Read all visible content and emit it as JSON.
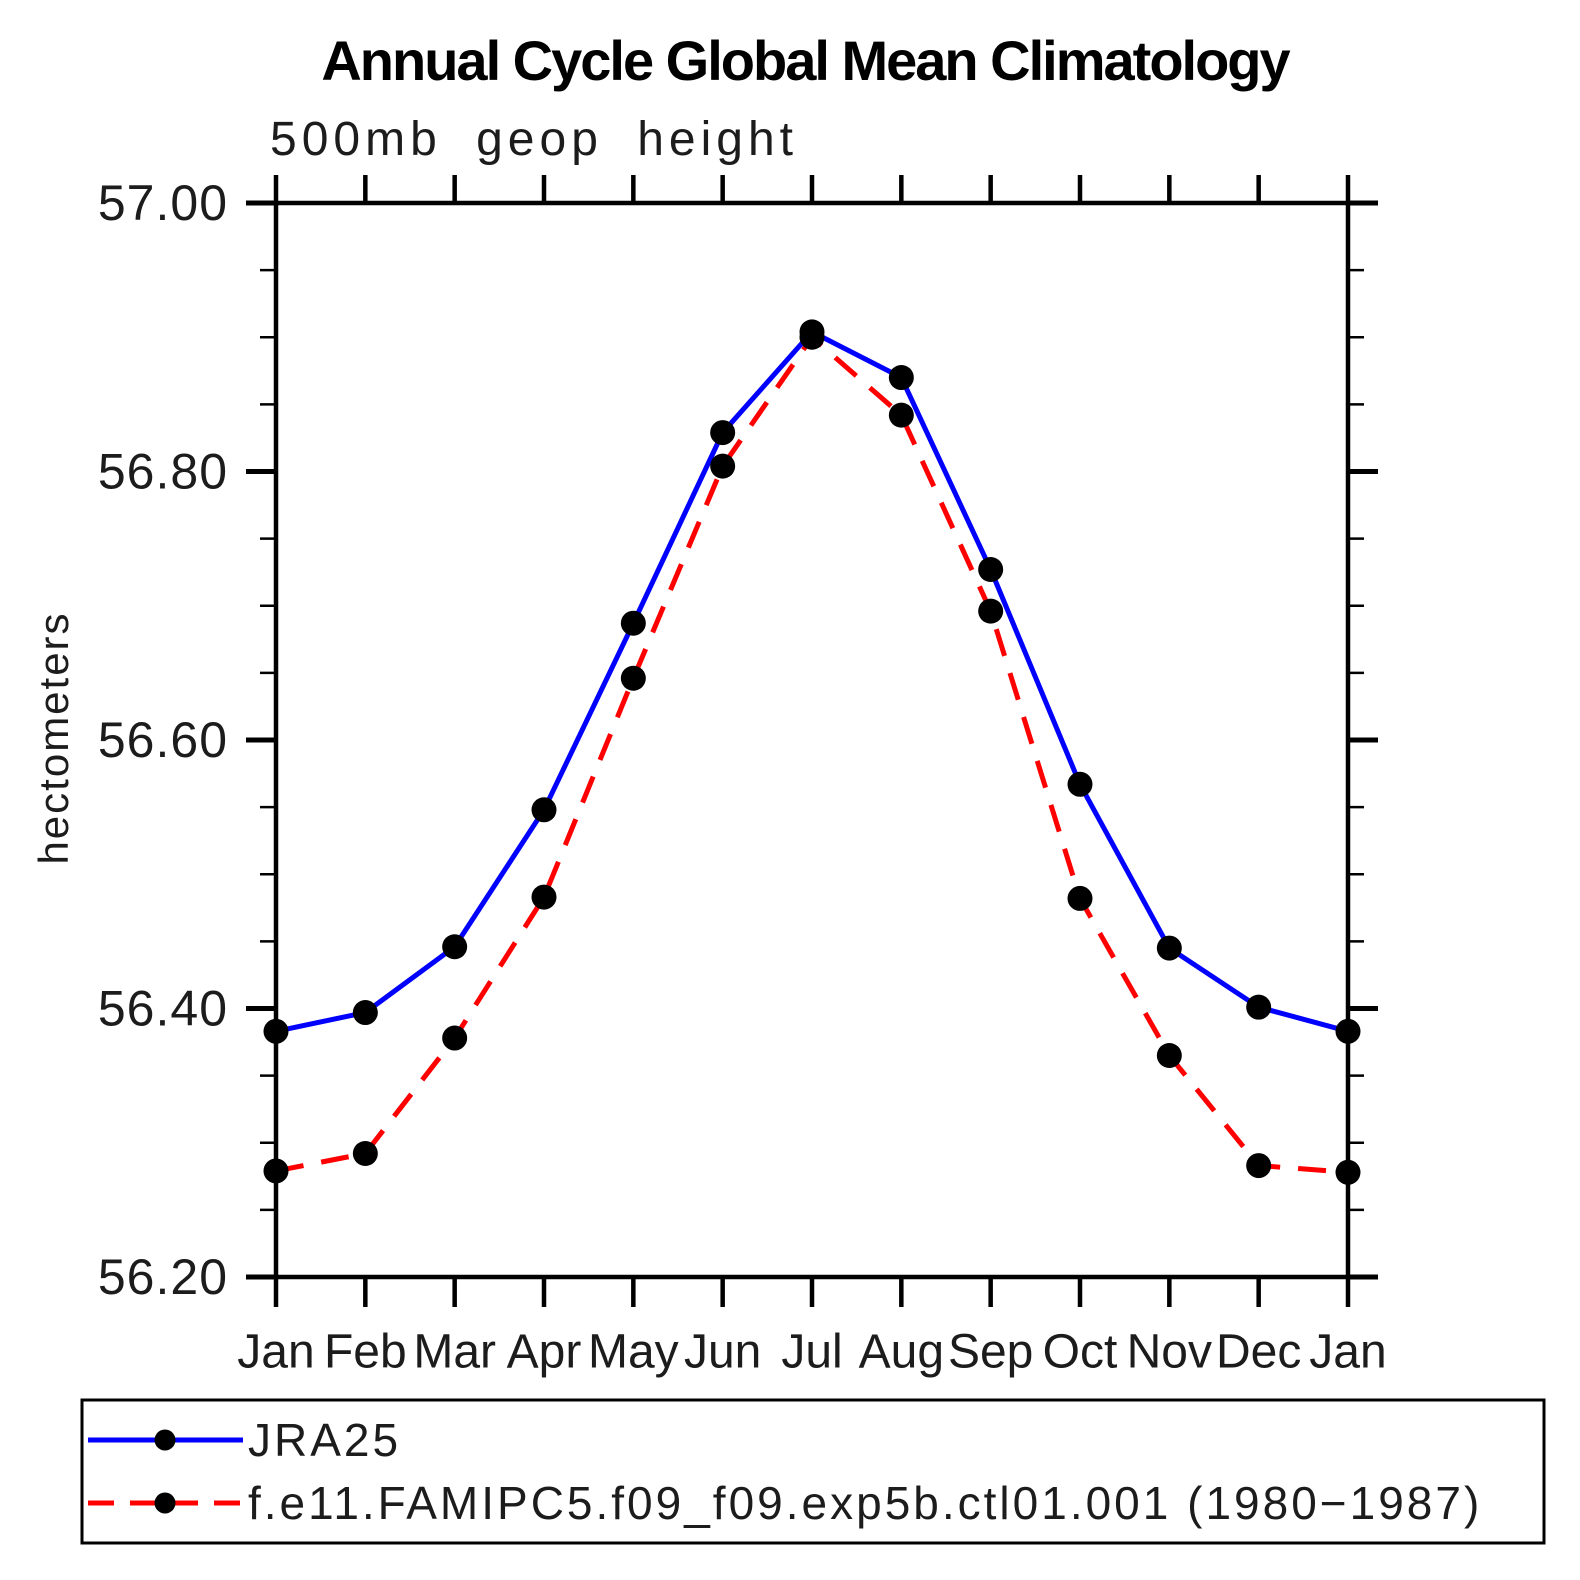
{
  "chart_data": {
    "type": "line",
    "title": "Annual Cycle Global Mean Climatology",
    "subtitle": "500mb geop height",
    "ylabel": "hectometers",
    "categories": [
      "Jan",
      "Feb",
      "Mar",
      "Apr",
      "May",
      "Jun",
      "Jul",
      "Aug",
      "Sep",
      "Oct",
      "Nov",
      "Dec",
      "Jan"
    ],
    "ylim": [
      56.2,
      57.0
    ],
    "y_tick_labels": [
      "57.00",
      "56.80",
      "56.60",
      "56.40",
      "56.20"
    ],
    "y_minor_step": 0.05,
    "grid": false,
    "tick_style": "outward-all-sides",
    "legend_position": "bottom-box",
    "marker_color": "#000000",
    "series": [
      {
        "name": "JRA25",
        "color": "#0000ff",
        "style": "solid",
        "marker": "filled-circle",
        "values": [
          56.383,
          56.397,
          56.446,
          56.548,
          56.687,
          56.829,
          56.904,
          56.87,
          56.727,
          56.567,
          56.445,
          56.401,
          56.383
        ]
      },
      {
        "name": "f.e11.FAMIPC5.f09_f09.exp5b.ctl01.001 (1980−1987)",
        "color": "#ff0000",
        "style": "dashed",
        "marker": "filled-circle",
        "values": [
          56.279,
          56.292,
          56.378,
          56.483,
          56.646,
          56.804,
          56.9,
          56.842,
          56.696,
          56.482,
          56.365,
          56.283,
          56.278
        ]
      }
    ]
  }
}
